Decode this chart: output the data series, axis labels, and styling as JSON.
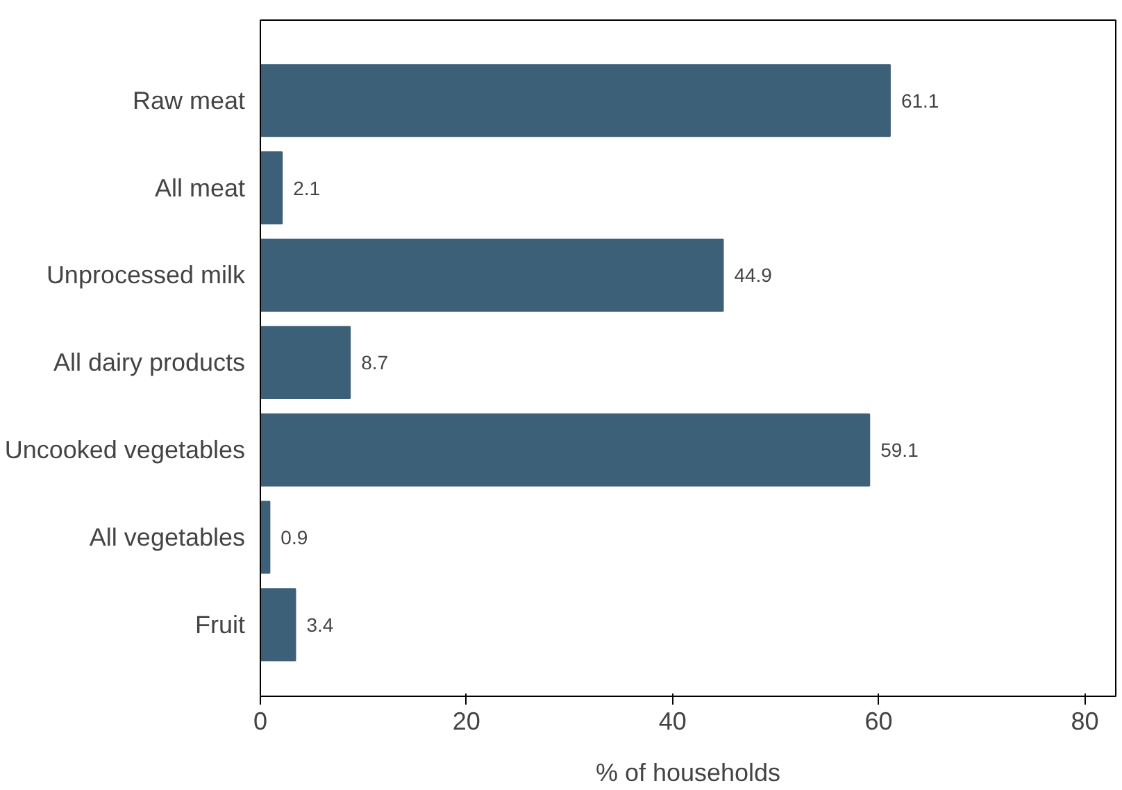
{
  "chart_data": {
    "type": "bar",
    "orientation": "horizontal",
    "categories": [
      "Raw meat",
      "All meat",
      "Unprocessed milk",
      "All dairy products",
      "Uncooked vegetables",
      "All vegetables",
      "Fruit"
    ],
    "values": [
      61.1,
      2.1,
      44.9,
      8.7,
      59.1,
      0.9,
      3.4
    ],
    "color": "#3d6079",
    "xlabel": "% of households",
    "xlim": [
      0,
      83
    ],
    "xticks": [
      0,
      20,
      40,
      60,
      80
    ],
    "data_labels": true,
    "grid": false
  }
}
